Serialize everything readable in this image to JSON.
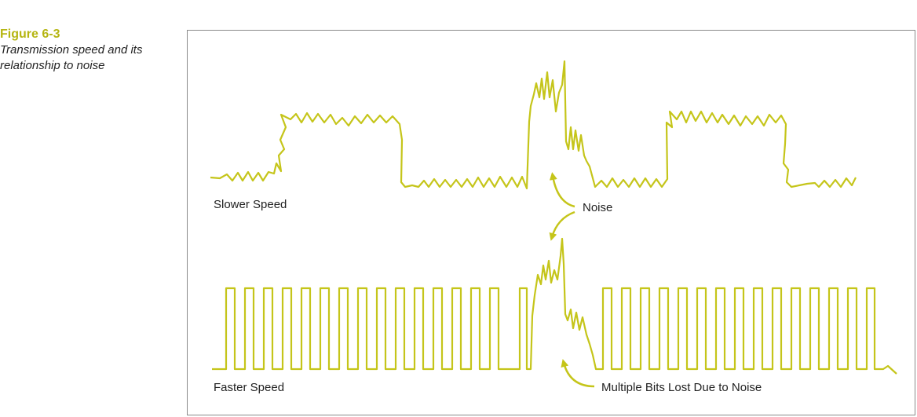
{
  "caption": {
    "figure_number": "Figure 6-3",
    "figure_title": "Transmission speed and its relationship to noise"
  },
  "labels": {
    "slower_speed": "Slower Speed",
    "faster_speed": "Faster Speed",
    "noise": "Noise",
    "multiple_bits_lost": "Multiple Bits Lost Due to Noise"
  },
  "colors": {
    "signal": "#c5c51a",
    "text": "#222222",
    "border": "#8a8a8a",
    "figure_number": "#b5b512"
  }
}
